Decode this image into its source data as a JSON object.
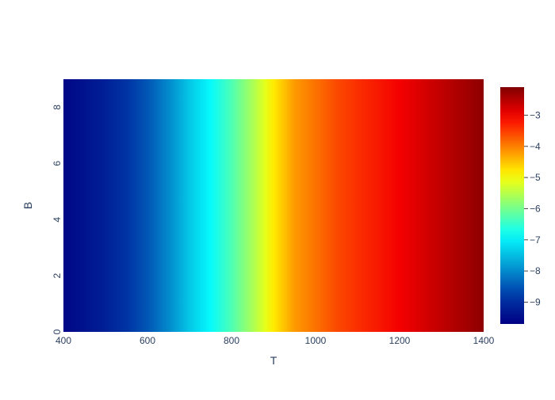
{
  "chart_data": {
    "type": "heatmap",
    "title": "",
    "xlabel": "T",
    "ylabel": "B",
    "xlim": [
      400,
      1400
    ],
    "ylim": [
      0,
      9
    ],
    "x_ticks": [
      400,
      600,
      800,
      1000,
      1200,
      1400
    ],
    "y_ticks": [
      0,
      2,
      4,
      6,
      8
    ],
    "colorscale": "Jet",
    "colorbar": {
      "range": [
        -9.7,
        -2.1
      ],
      "ticks": [
        -9,
        -8,
        -7,
        -6,
        -5,
        -4,
        -3
      ],
      "tick_labels": [
        "−9",
        "−8",
        "−7",
        "−6",
        "−5",
        "−4",
        "−3"
      ]
    },
    "z_profile": {
      "note_free": true,
      "T": [
        400,
        450,
        500,
        550,
        600,
        650,
        700,
        750,
        800,
        850,
        880,
        900,
        950,
        1000,
        1050,
        1100,
        1200,
        1300,
        1400
      ],
      "z": [
        -9.6,
        -9.4,
        -9.2,
        -8.9,
        -8.5,
        -8.0,
        -7.4,
        -6.9,
        -6.3,
        -5.6,
        -5.15,
        -4.8,
        -4.2,
        -3.9,
        -3.6,
        -3.4,
        -3.0,
        -2.6,
        -2.2
      ]
    }
  },
  "colors": {
    "axis_text": "#2a3f5f",
    "background": "#ffffff"
  }
}
